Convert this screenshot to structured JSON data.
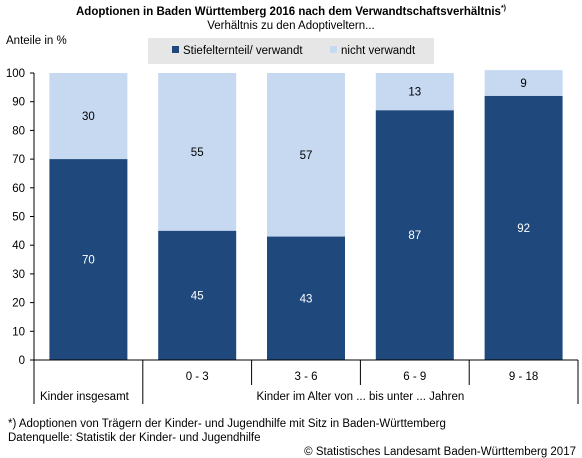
{
  "title": "Adoptionen in Baden Württemberg 2016 nach dem Verwandtschaftsverhältnis",
  "title_sup": "*)",
  "subtitle": "Verhältnis zu den Adoptiveltern...",
  "ylabel": "Anteile in %",
  "legend": {
    "series1": "Stiefelternteil/ verwandt",
    "series2": "nicht verwandt"
  },
  "chart_data": {
    "type": "bar",
    "stacked": true,
    "categories": [
      "Kinder insgesamt",
      "0 - 3",
      "3 - 6",
      "6 - 9",
      "9 - 18"
    ],
    "group_label": "Kinder im Alter von ... bis unter ... Jahren",
    "series": [
      {
        "name": "Stiefelternteil/ verwandt",
        "values": [
          70,
          45,
          43,
          87,
          92
        ],
        "color": "#1f497d"
      },
      {
        "name": "nicht verwandt",
        "values": [
          30,
          55,
          57,
          13,
          9
        ],
        "color": "#c6d9f1"
      }
    ],
    "ylim": [
      0,
      100
    ],
    "yticks": [
      0,
      10,
      20,
      30,
      40,
      50,
      60,
      70,
      80,
      90,
      100
    ],
    "grid": false,
    "legend_position": "top"
  },
  "footnote": "*) Adoptionen von Trägern der Kinder- und Jugendhilfe mit Sitz in Baden-Württemberg",
  "source": "Datenquelle: Statistik der Kinder- und Jugendhilfe",
  "copyright": "© Statistisches Landesamt Baden-Württemberg 2017"
}
